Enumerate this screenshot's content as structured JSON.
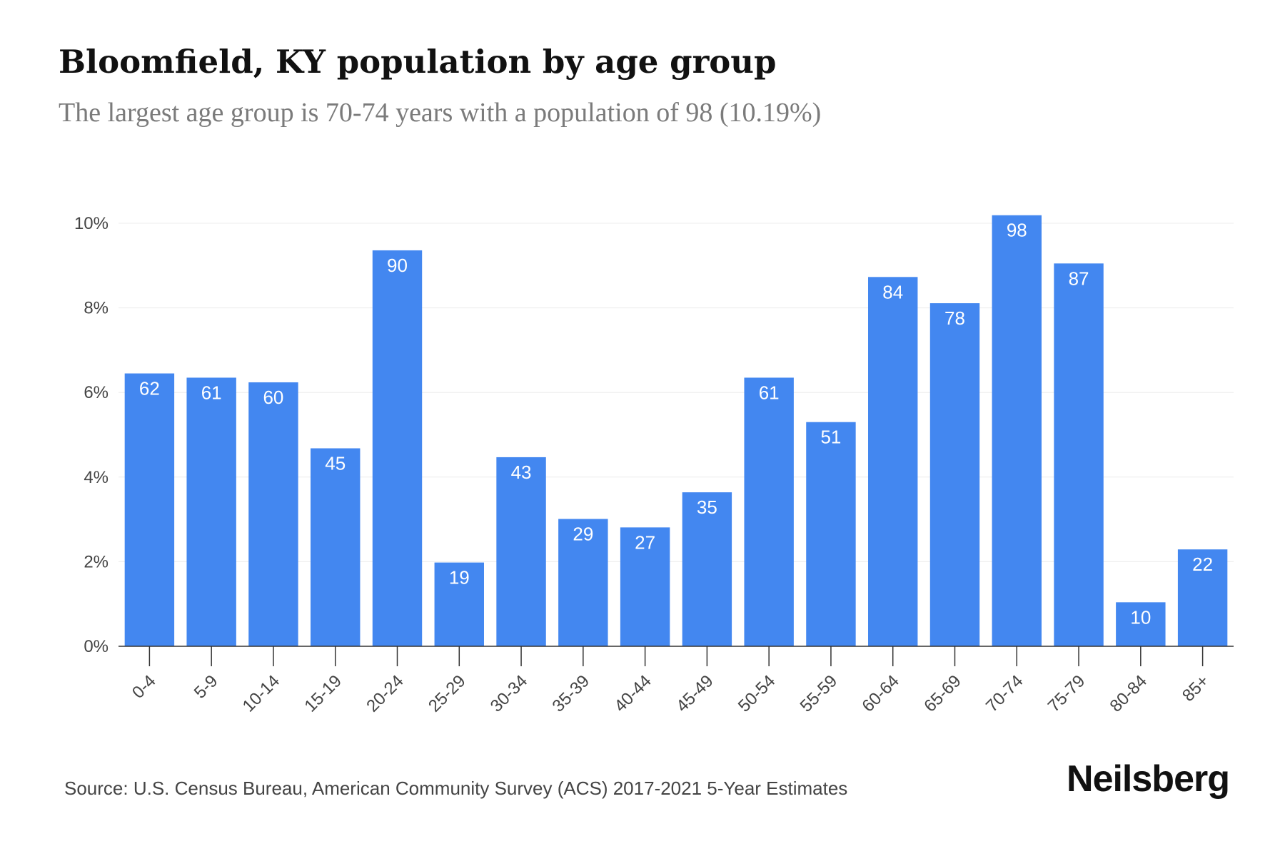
{
  "header": {
    "title": "Bloomfield, KY population by age group",
    "subtitle": "The largest age group is 70-74 years with a population of 98 (10.19%)"
  },
  "footer": {
    "source": "Source: U.S. Census Bureau, American Community Survey (ACS) 2017-2021 5-Year Estimates",
    "brand": "Neilsberg"
  },
  "colors": {
    "bar": "#4387f0",
    "grid": "#ececec",
    "axis": "#333333"
  },
  "chart_data": {
    "type": "bar",
    "title": "Bloomfield, KY population by age group",
    "subtitle": "The largest age group is 70-74 years with a population of 98 (10.19%)",
    "categories": [
      "0-4",
      "5-9",
      "10-14",
      "15-19",
      "20-24",
      "25-29",
      "30-34",
      "35-39",
      "40-44",
      "45-49",
      "50-54",
      "55-59",
      "60-64",
      "65-69",
      "70-74",
      "75-79",
      "80-84",
      "85+"
    ],
    "values": [
      6.45,
      6.35,
      6.24,
      4.68,
      9.36,
      1.98,
      4.47,
      3.01,
      2.81,
      3.64,
      6.35,
      5.3,
      8.73,
      8.11,
      10.19,
      9.05,
      1.04,
      2.29
    ],
    "data_labels": [
      "62",
      "61",
      "60",
      "45",
      "90",
      "19",
      "43",
      "29",
      "27",
      "35",
      "61",
      "51",
      "84",
      "78",
      "98",
      "87",
      "10",
      "22"
    ],
    "y_ticks": [
      "0%",
      "2%",
      "4%",
      "6%",
      "8%",
      "10%"
    ],
    "y_tick_values": [
      0,
      2,
      4,
      6,
      8,
      10
    ],
    "ylim": [
      0,
      10
    ],
    "xlabel": "",
    "ylabel": "",
    "grid": true,
    "legend": "none"
  }
}
